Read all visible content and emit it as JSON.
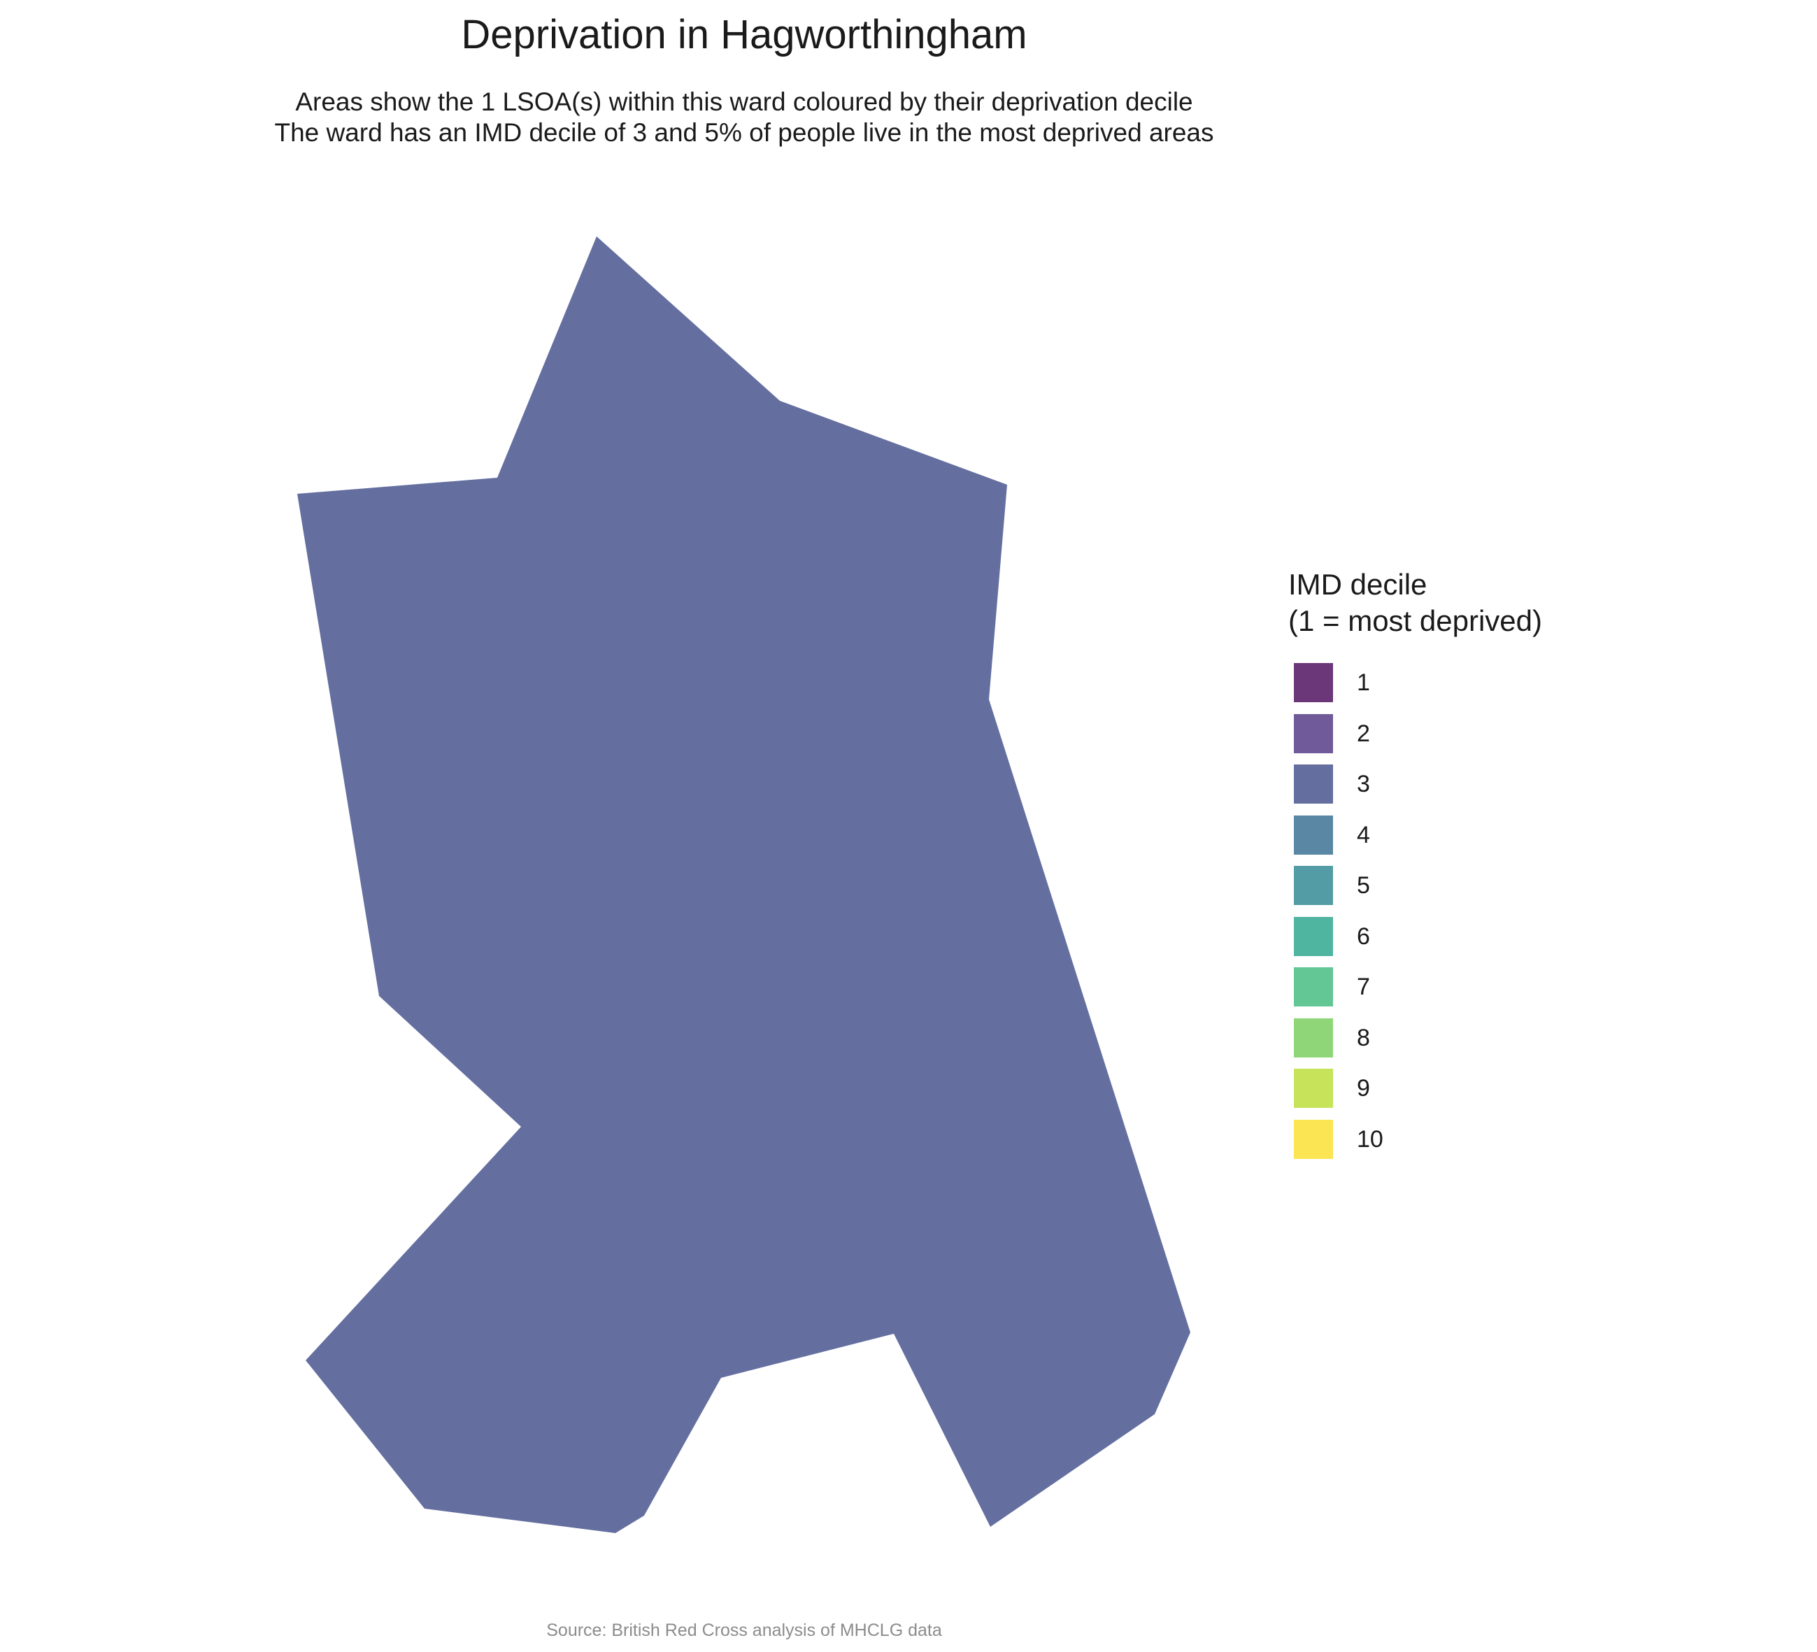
{
  "title": "Deprivation in Hagworthingham",
  "subtitle_line1": "Areas show the 1 LSOA(s) within this ward coloured by their deprivation decile",
  "subtitle_line2": "The ward has an IMD decile of 3 and 5% of people live in the most deprived areas",
  "legend": {
    "title_line1": "IMD decile",
    "title_line2": "(1 = most deprived)",
    "items": [
      {
        "label": "1",
        "color": "#6b3778"
      },
      {
        "label": "2",
        "color": "#715a99"
      },
      {
        "label": "3",
        "color": "#646fa0"
      },
      {
        "label": "4",
        "color": "#5a87a3"
      },
      {
        "label": "5",
        "color": "#539ca5"
      },
      {
        "label": "6",
        "color": "#4fb4a0"
      },
      {
        "label": "7",
        "color": "#62c795"
      },
      {
        "label": "8",
        "color": "#8fd678"
      },
      {
        "label": "9",
        "color": "#c6e35a"
      },
      {
        "label": "10",
        "color": "#fbe552"
      }
    ]
  },
  "map": {
    "areas": [
      {
        "name": "Hagworthingham LSOA",
        "decile": 3,
        "color": "#646fa0"
      }
    ]
  },
  "caption": "Source: British Red Cross analysis of MHCLG data"
}
